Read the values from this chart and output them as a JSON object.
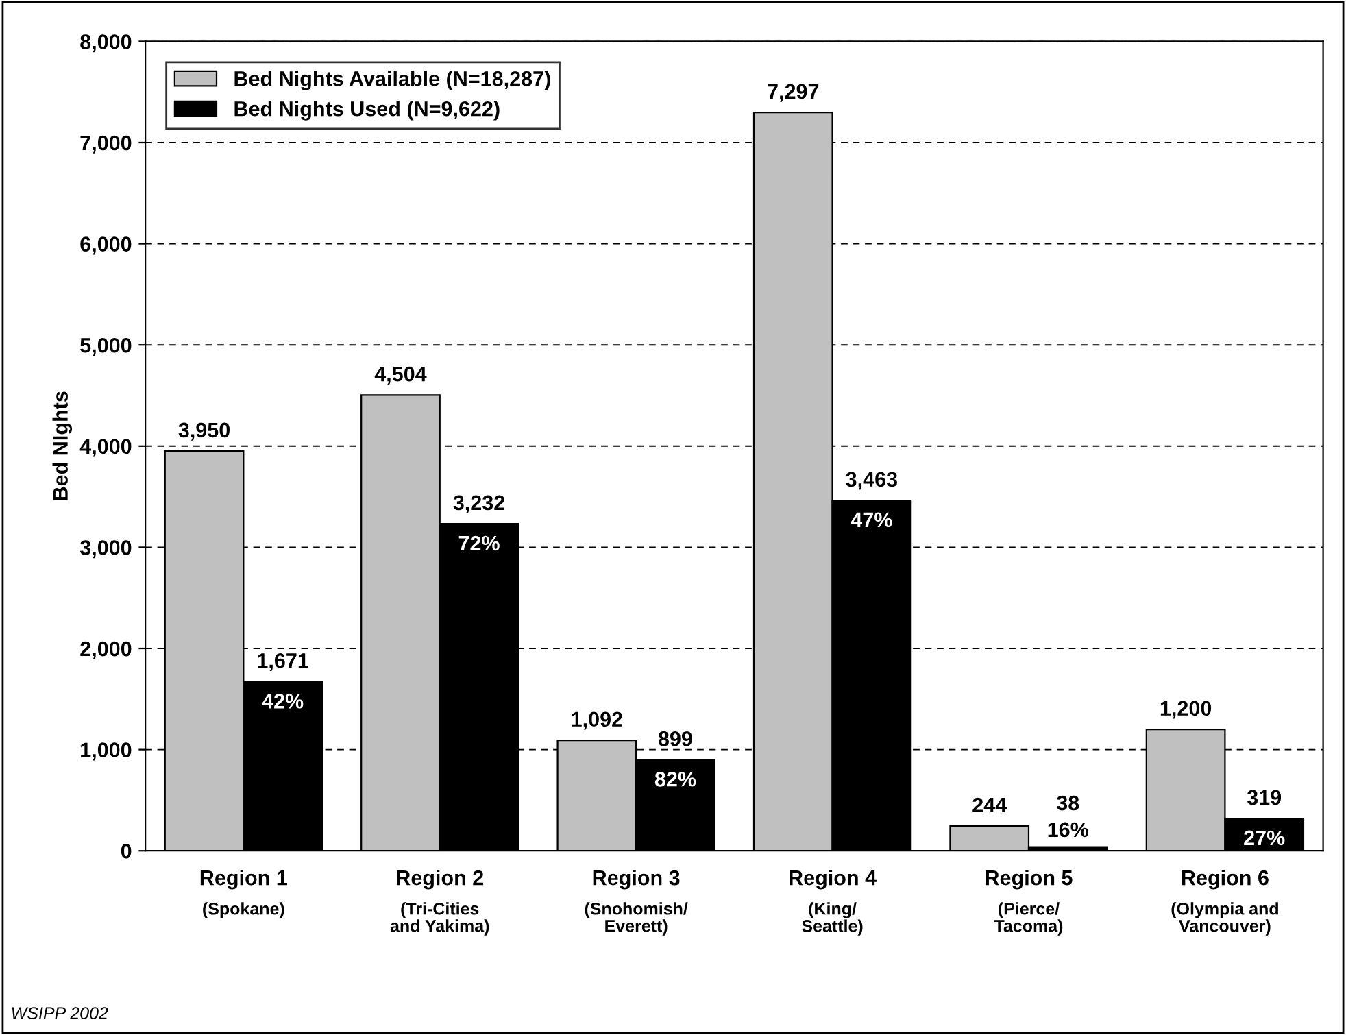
{
  "chart_data": {
    "type": "bar",
    "ylabel": "Bed NIghts",
    "categories": [
      "Region 1\n(Spokane)",
      "Region 2\n(Tri-Cities\nand Yakima)",
      "Region 3\n(Snohomish/\nEverett)",
      "Region 4\n(King/\nSeattle)",
      "Region 5\n(Pierce/\nTacoma)",
      "Region 6\n(Olympia and\nVancouver)"
    ],
    "series": [
      {
        "name": "Bed Nights Available (N=18,287)",
        "color": "#c0c0c0",
        "values": [
          3950,
          4504,
          1092,
          7297,
          244,
          1200
        ],
        "value_labels": [
          "3,950",
          "4,504",
          "1,092",
          "7,297",
          "244",
          "1,200"
        ]
      },
      {
        "name": "Bed Nights Used (N=9,622)",
        "color": "#000000",
        "values": [
          1671,
          3232,
          899,
          3463,
          38,
          319
        ],
        "value_labels": [
          "1,671",
          "3,232",
          "899",
          "3,463",
          "38",
          "319"
        ]
      }
    ],
    "ylim": [
      0,
      8000
    ],
    "yticks": [
      {
        "value": 0,
        "label": "0"
      },
      {
        "value": 1000,
        "label": "1,000"
      },
      {
        "value": 2000,
        "label": "2,000"
      },
      {
        "value": 3000,
        "label": "3,000"
      },
      {
        "value": 4000,
        "label": "4,000"
      },
      {
        "value": 5000,
        "label": "5,000"
      },
      {
        "value": 6000,
        "label": "6,000"
      },
      {
        "value": 7000,
        "label": "7,000"
      },
      {
        "value": 8000,
        "label": "8,000"
      }
    ],
    "grid": "y",
    "legend": "top left",
    "annotations": [
      {
        "text": "42%",
        "x": "Region 1\n(Spokane)",
        "y": 1671
      },
      {
        "text": "72%",
        "x": "Region 2\n(Tri-Cities\nand Yakima)",
        "y": 3232
      },
      {
        "text": "82%",
        "x": "Region 3\n(Snohomish/\nEverett)",
        "y": 899
      },
      {
        "text": "47%",
        "x": "Region 4\n(King/\nSeattle)",
        "y": 3463
      },
      {
        "text": "16%",
        "x": "Region 5\n(Pierce/\nTacoma)",
        "y": 38
      },
      {
        "text": "27%",
        "x": "Region 6\n(Olympia and\nVancouver)",
        "y": 319
      },
      "WSIPP 2002"
    ]
  }
}
